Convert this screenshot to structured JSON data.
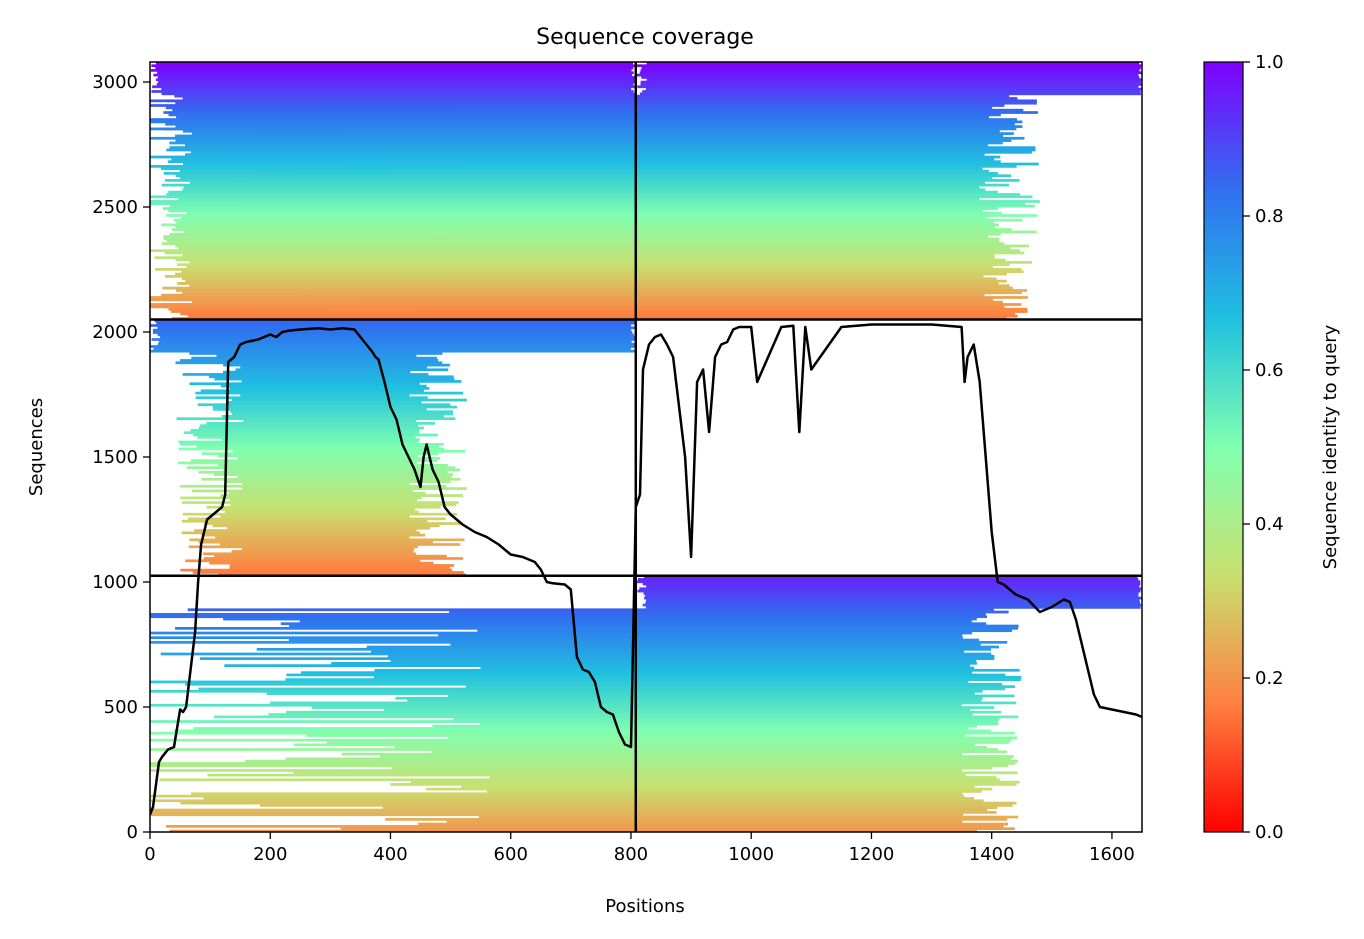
{
  "chart_data": {
    "type": "heatmap",
    "title": "Sequence coverage",
    "xlabel": "Positions",
    "ylabel": "Sequences",
    "xlim": [
      0,
      1650
    ],
    "ylim": [
      0,
      3080
    ],
    "xticks": [
      0,
      200,
      400,
      600,
      800,
      1000,
      1200,
      1400,
      1600
    ],
    "yticks": [
      0,
      500,
      1000,
      1500,
      2000,
      2500,
      3000
    ],
    "grid": false,
    "colorbar": {
      "label": "Sequence identity to query",
      "range": [
        0,
        1
      ],
      "ticks": [
        "0.0",
        "0.2",
        "0.4",
        "0.6",
        "0.8",
        "1.0"
      ],
      "colormap": [
        "#ff0000",
        "#ff8040",
        "#c8e070",
        "#80ffb0",
        "#20c0e0",
        "#3070f0",
        "#8000ff"
      ]
    },
    "chain_boundaries": {
      "x": 808,
      "y": [
        1025,
        2050
      ]
    },
    "blocks": [
      {
        "x": [
          0,
          808
        ],
        "y": [
          2050,
          3080
        ],
        "identity_top": 1.0,
        "identity_bottom": 0.15,
        "ragged_start": 60,
        "ragged_end": 620
      },
      {
        "x": [
          808,
          1650
        ],
        "y": [
          2050,
          3080
        ],
        "identity_top": 1.0,
        "identity_bottom": 0.15,
        "ragged_start": 10,
        "ragged_end": 1430
      },
      {
        "x": [
          0,
          808
        ],
        "y": [
          1025,
          2050
        ],
        "identity_top": 0.85,
        "identity_bottom": 0.15,
        "ragged_start": 130,
        "ragged_end": 480
      },
      {
        "x": [
          808,
          1650
        ],
        "y": [
          0,
          1025
        ],
        "identity_top": 0.95,
        "identity_bottom": 0.2,
        "ragged_start": 10,
        "ragged_end": 1400
      }
    ],
    "series": [
      {
        "type": "line",
        "color": "#000000",
        "x": [
          0,
          5,
          15,
          20,
          30,
          40,
          50,
          55,
          60,
          65,
          70,
          75,
          80,
          85,
          90,
          95,
          100,
          110,
          120,
          125,
          130,
          135,
          140,
          150,
          160,
          180,
          200,
          210,
          220,
          230,
          250,
          280,
          300,
          320,
          340,
          360,
          370,
          375,
          380,
          390,
          395,
          400,
          410,
          415,
          420,
          430,
          440,
          450,
          455,
          460,
          470,
          480,
          490,
          500,
          510,
          520,
          540,
          560,
          580,
          600,
          620,
          640,
          650,
          660,
          670,
          690,
          700,
          710,
          720,
          730,
          740,
          750,
          760,
          770,
          780,
          790,
          800,
          808,
          815,
          820,
          830,
          840,
          850,
          860,
          870,
          880,
          890,
          900,
          910,
          920,
          930,
          940,
          950,
          960,
          970,
          980,
          1000,
          1010,
          1050,
          1070,
          1080,
          1090,
          1100,
          1150,
          1200,
          1250,
          1300,
          1350,
          1355,
          1360,
          1370,
          1380,
          1390,
          1400,
          1410,
          1420,
          1440,
          1460,
          1480,
          1500,
          1520,
          1530,
          1540,
          1560,
          1570,
          1580,
          1600,
          1620,
          1640,
          1650
        ],
        "y": [
          70,
          100,
          280,
          300,
          330,
          340,
          490,
          480,
          500,
          600,
          700,
          800,
          1000,
          1150,
          1200,
          1250,
          1260,
          1280,
          1300,
          1350,
          1880,
          1890,
          1900,
          1950,
          1960,
          1970,
          1990,
          1980,
          2000,
          2005,
          2010,
          2015,
          2010,
          2015,
          2010,
          1950,
          1920,
          1900,
          1890,
          1800,
          1750,
          1700,
          1650,
          1600,
          1550,
          1500,
          1450,
          1380,
          1500,
          1550,
          1450,
          1400,
          1300,
          1270,
          1250,
          1230,
          1200,
          1180,
          1150,
          1110,
          1100,
          1080,
          1050,
          1000,
          995,
          990,
          970,
          700,
          650,
          640,
          600,
          500,
          480,
          470,
          400,
          350,
          340,
          1300,
          1350,
          1850,
          1950,
          1980,
          1990,
          1950,
          1900,
          1700,
          1500,
          1100,
          1800,
          1850,
          1600,
          1900,
          1950,
          1960,
          2010,
          2020,
          2020,
          1800,
          2020,
          2025,
          1600,
          2020,
          1850,
          2020,
          2030,
          2030,
          2030,
          2020,
          1800,
          1900,
          1950,
          1800,
          1500,
          1200,
          1000,
          990,
          950,
          930,
          880,
          900,
          930,
          920,
          850,
          650,
          550,
          500,
          490,
          480,
          470,
          460
        ]
      }
    ]
  }
}
